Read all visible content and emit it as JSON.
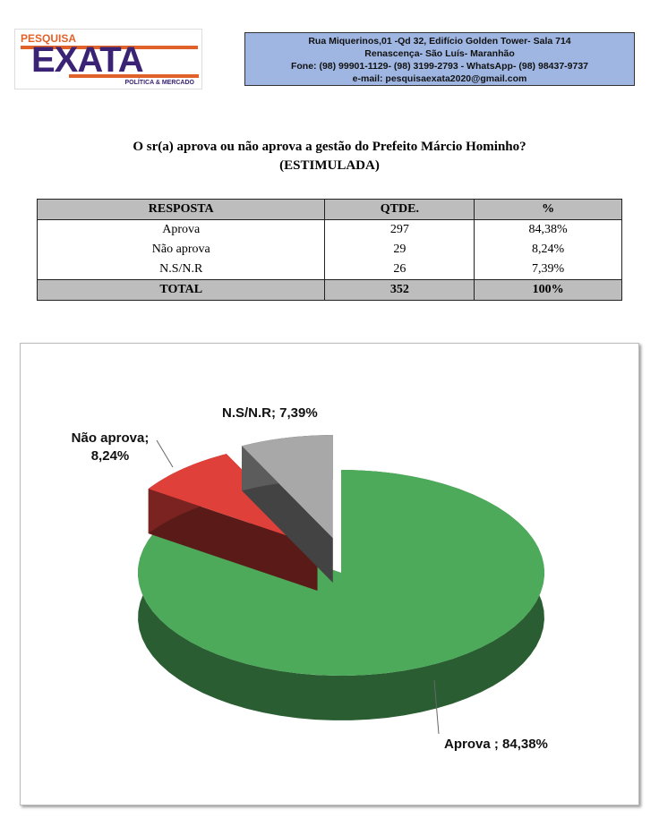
{
  "header": {
    "logo": {
      "top": "PESQUISA",
      "main": "EXATA",
      "bottom": "POLÍTICA & MERCADO"
    },
    "address_lines": [
      "Rua Miquerinos,01 -Qd 32,  Edifício Golden Tower- Sala 714",
      "Renascença- São Luís- Maranhão",
      "Fone: (98) 99901-1129- (98) 3199-2793 - WhatsApp- (98) 98437-9737",
      "e-mail: pesquisaexata2020@gmail.com"
    ]
  },
  "question": {
    "line1": "O sr(a) aprova ou não aprova a gestão do Prefeito Márcio Hominho?",
    "line2": "(ESTIMULADA)"
  },
  "table": {
    "headers": [
      "RESPOSTA",
      "QTDE.",
      "%"
    ],
    "rows": [
      [
        "Aprova",
        "297",
        "84,38%"
      ],
      [
        "Não aprova",
        "29",
        "8,24%"
      ],
      [
        "N.S/N.R",
        "26",
        "7,39%"
      ]
    ],
    "total": [
      "TOTAL",
      "352",
      "100%"
    ]
  },
  "chart_data": {
    "type": "pie",
    "style": "3d-exploded",
    "categories": [
      "Aprova",
      "Não aprova",
      "N.S/N.R"
    ],
    "values": [
      84.38,
      8.24,
      7.39
    ],
    "colors": [
      "#4caa5a",
      "#e0403a",
      "#a8a8a8"
    ],
    "data_labels": [
      "Aprova ; 84,38%",
      "Não aprova; 8,24%",
      "N.S/N.R; 7,39%"
    ],
    "legend": "none"
  }
}
